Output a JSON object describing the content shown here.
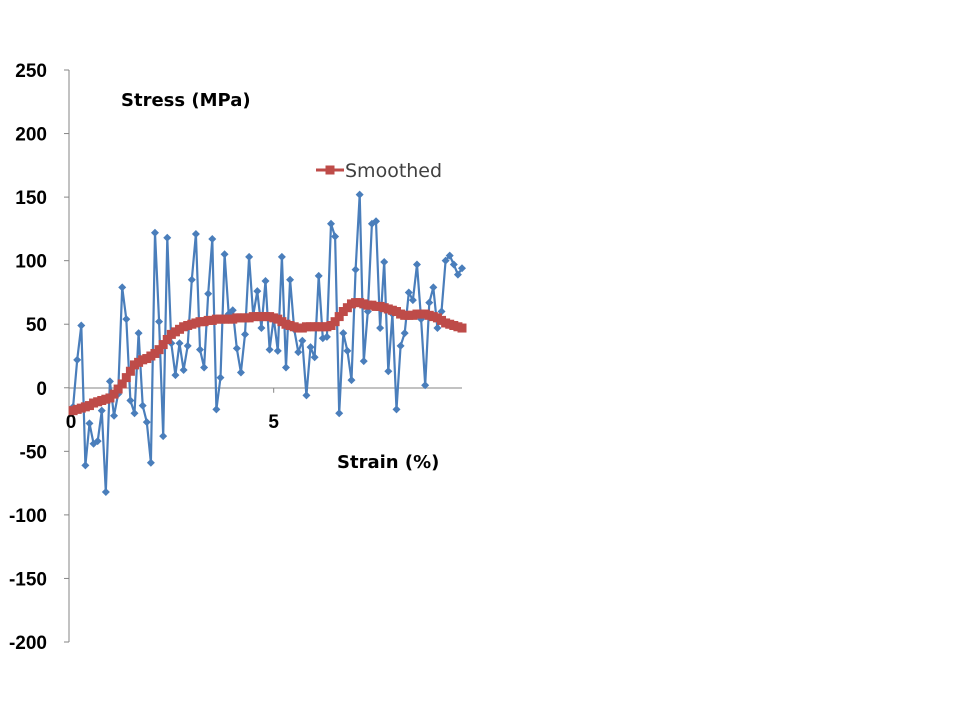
{
  "chart_data": {
    "type": "line",
    "xlabel": "Strain (%)",
    "ylabel": "Stress (MPa)",
    "xlim": [
      0,
      9.6
    ],
    "ylim": [
      -200,
      250
    ],
    "y_ticks": [
      250,
      200,
      150,
      100,
      50,
      0,
      -50,
      -100,
      -150,
      -200
    ],
    "x_tick_labels": [
      "0",
      "5"
    ],
    "x_ticks": [
      0,
      5
    ],
    "legend_position": "top-right",
    "series": [
      {
        "color": "#4a7ebb",
        "marker": "diamond",
        "x": [
          0.1,
          0.2,
          0.3,
          0.4,
          0.5,
          0.6,
          0.7,
          0.8,
          0.9,
          1.0,
          1.1,
          1.2,
          1.3,
          1.4,
          1.5,
          1.6,
          1.7,
          1.8,
          1.9,
          2.0,
          2.1,
          2.2,
          2.3,
          2.4,
          2.5,
          2.6,
          2.7,
          2.8,
          2.9,
          3.0,
          3.1,
          3.2,
          3.3,
          3.4,
          3.5,
          3.6,
          3.7,
          3.8,
          3.9,
          4.0,
          4.1,
          4.2,
          4.3,
          4.4,
          4.5,
          4.6,
          4.7,
          4.8,
          4.9,
          5.0,
          5.1,
          5.2,
          5.3,
          5.4,
          5.5,
          5.6,
          5.7,
          5.8,
          5.9,
          6.0,
          6.1,
          6.2,
          6.3,
          6.4,
          6.5,
          6.6,
          6.7,
          6.8,
          6.9,
          7.0,
          7.1,
          7.2,
          7.3,
          7.4,
          7.5,
          7.6,
          7.7,
          7.8,
          7.9,
          8.0,
          8.1,
          8.2,
          8.3,
          8.4,
          8.5,
          8.6,
          8.7,
          8.8,
          8.9,
          9.0,
          9.1,
          9.2,
          9.3,
          9.4,
          9.5,
          9.6
        ],
        "values": [
          -15,
          22,
          49,
          -61,
          -28,
          -44,
          -42,
          -18,
          -82,
          5,
          -22,
          -5,
          79,
          54,
          -10,
          -20,
          43,
          -14,
          -27,
          -59,
          122,
          52,
          -38,
          118,
          35,
          10,
          35,
          14,
          33,
          85,
          121,
          30,
          16,
          74,
          117,
          -17,
          8,
          105,
          58,
          61,
          31,
          12,
          42,
          103,
          57,
          76,
          47,
          84,
          30,
          55,
          29,
          103,
          16,
          85,
          46,
          28,
          37,
          -6,
          32,
          24,
          88,
          39,
          40,
          129,
          119,
          -20,
          43,
          29,
          6,
          93,
          152,
          21,
          60,
          129,
          131,
          47,
          99,
          13,
          58,
          -17,
          33,
          43,
          75,
          69,
          97,
          54,
          2,
          67,
          79,
          47,
          60,
          100,
          104,
          97,
          89,
          94
        ]
      },
      {
        "name": "Smoothed",
        "color": "#be4b48",
        "marker": "square",
        "x": [
          0.1,
          0.2,
          0.3,
          0.4,
          0.5,
          0.6,
          0.7,
          0.8,
          0.9,
          1.0,
          1.1,
          1.2,
          1.3,
          1.4,
          1.5,
          1.6,
          1.7,
          1.8,
          1.9,
          2.0,
          2.1,
          2.2,
          2.3,
          2.4,
          2.5,
          2.6,
          2.7,
          2.8,
          2.9,
          3.0,
          3.1,
          3.2,
          3.3,
          3.4,
          3.5,
          3.6,
          3.7,
          3.8,
          3.9,
          4.0,
          4.1,
          4.2,
          4.3,
          4.4,
          4.5,
          4.6,
          4.7,
          4.8,
          4.9,
          5.0,
          5.1,
          5.2,
          5.3,
          5.4,
          5.5,
          5.6,
          5.7,
          5.8,
          5.9,
          6.0,
          6.1,
          6.2,
          6.3,
          6.4,
          6.5,
          6.6,
          6.7,
          6.8,
          6.9,
          7.0,
          7.1,
          7.2,
          7.3,
          7.4,
          7.5,
          7.6,
          7.7,
          7.8,
          7.9,
          8.0,
          8.1,
          8.2,
          8.3,
          8.4,
          8.5,
          8.6,
          8.7,
          8.8,
          8.9,
          9.0,
          9.1,
          9.2,
          9.3,
          9.4,
          9.5,
          9.6
        ],
        "values": [
          -18,
          -17,
          -16,
          -15,
          -14,
          -12,
          -11,
          -10,
          -9,
          -8,
          -5,
          -1,
          3,
          8,
          13,
          18,
          20,
          22,
          23,
          25,
          27,
          30,
          34,
          38,
          42,
          44,
          46,
          48,
          49,
          50,
          51,
          52,
          52,
          53,
          53,
          54,
          54,
          54,
          54,
          54,
          55,
          55,
          55,
          55,
          56,
          56,
          56,
          56,
          56,
          55,
          54,
          52,
          50,
          49,
          48,
          47,
          47,
          48,
          48,
          48,
          48,
          48,
          48,
          49,
          52,
          56,
          60,
          63,
          66,
          67,
          67,
          66,
          65,
          65,
          64,
          64,
          63,
          62,
          61,
          60,
          58,
          57,
          57,
          57,
          58,
          58,
          58,
          57,
          56,
          55,
          53,
          51,
          50,
          49,
          48,
          47
        ]
      }
    ]
  }
}
